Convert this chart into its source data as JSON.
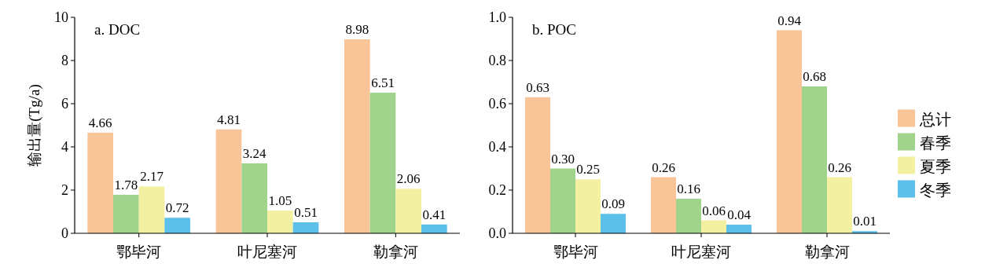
{
  "chart_data": [
    {
      "type": "bar",
      "title": "a. DOC",
      "ylabel": "输出量(Tg/a)",
      "categories": [
        "鄂毕河",
        "叶尼塞河",
        "勒拿河"
      ],
      "ylim": [
        0,
        10
      ],
      "yticks": [
        0,
        2,
        4,
        6,
        8,
        10
      ],
      "legend": false,
      "grid": false,
      "series": [
        {
          "color": "#f8c498",
          "values": [
            4.66,
            4.81,
            8.98
          ],
          "value_labels": [
            "4.66",
            "4.81",
            "8.98"
          ]
        },
        {
          "color": "#a0d48c",
          "values": [
            1.78,
            3.24,
            6.51
          ],
          "value_labels": [
            "1.78",
            "3.24",
            "6.51"
          ]
        },
        {
          "color": "#f4f0a2",
          "values": [
            2.17,
            1.05,
            2.06
          ],
          "value_labels": [
            "2.17",
            "1.05",
            "2.06"
          ]
        },
        {
          "color": "#5cc0ea",
          "values": [
            0.72,
            0.51,
            0.41
          ],
          "value_labels": [
            "0.72",
            "0.51",
            "0.41"
          ]
        }
      ]
    },
    {
      "type": "bar",
      "title": "b. POC",
      "categories": [
        "鄂毕河",
        "叶尼塞河",
        "勒拿河"
      ],
      "ylim": [
        0,
        1
      ],
      "yticks": [
        {
          "value": 0,
          "label": "0.0"
        },
        0.2,
        0.4,
        0.6,
        0.8,
        {
          "value": 1,
          "label": "1.0"
        }
      ],
      "legend": "right",
      "grid": false,
      "series": [
        {
          "name": "总计",
          "color": "#f8c498",
          "values": [
            0.63,
            0.26,
            0.94
          ],
          "value_labels": [
            "0.63",
            "0.26",
            "0.94"
          ]
        },
        {
          "name": "春季",
          "color": "#a0d48c",
          "values": [
            0.3,
            0.16,
            0.68
          ],
          "value_labels": [
            "0.30",
            "0.16",
            "0.68"
          ]
        },
        {
          "name": "夏季",
          "color": "#f4f0a2",
          "values": [
            0.25,
            0.06,
            0.26
          ],
          "value_labels": [
            "0.25",
            "0.06",
            "0.26"
          ]
        },
        {
          "name": "冬季",
          "color": "#5cc0ea",
          "values": [
            0.09,
            0.04,
            0.01
          ],
          "value_labels": [
            "0.09",
            "0.04",
            "0.01"
          ]
        }
      ]
    }
  ]
}
